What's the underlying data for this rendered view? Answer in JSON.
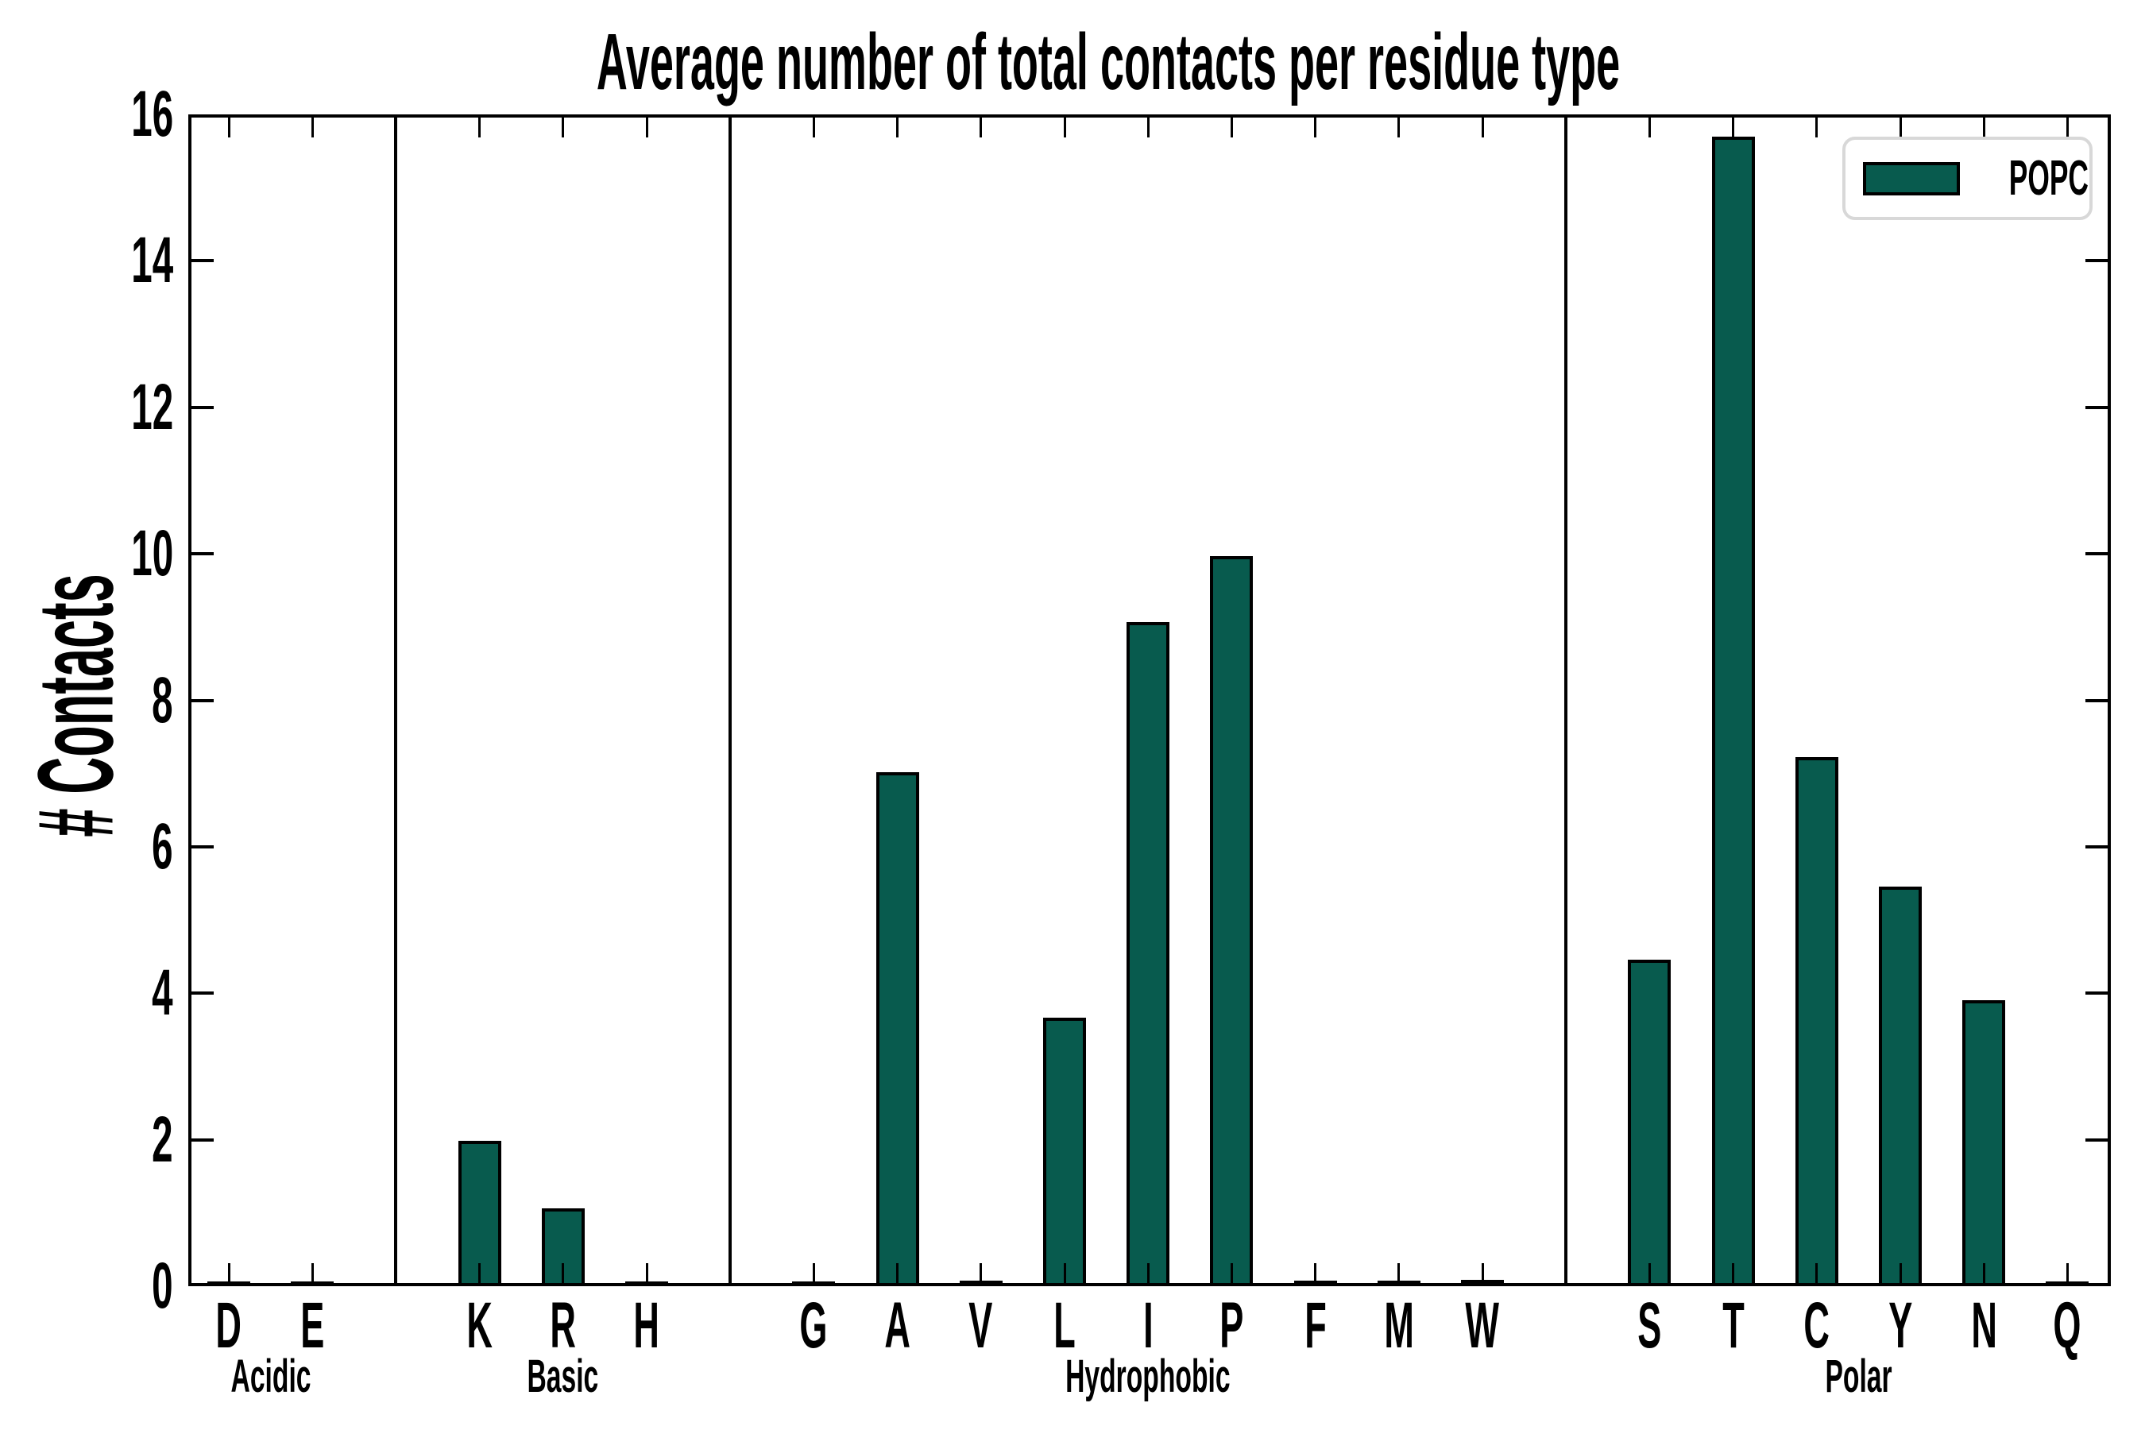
{
  "chart_data": {
    "type": "bar",
    "title": "Average number of total contacts per residue type",
    "ylabel": "# Contacts",
    "ylim": [
      0,
      16
    ],
    "yticks": [
      0,
      2,
      4,
      6,
      8,
      10,
      12,
      14,
      16
    ],
    "grid": false,
    "legend": {
      "label": "POPC",
      "position": "upper right"
    },
    "bar_color": "#085b4e",
    "bar_edge_color": "#000000",
    "group_separator_color": "#000000",
    "categories": [
      "D",
      "E",
      "K",
      "R",
      "H",
      "G",
      "A",
      "V",
      "L",
      "I",
      "P",
      "F",
      "M",
      "W",
      "S",
      "T",
      "C",
      "Y",
      "N",
      "Q"
    ],
    "values": [
      0.02,
      0.02,
      1.94,
      1.02,
      0.02,
      0.02,
      6.97,
      0.03,
      3.62,
      9.02,
      9.93,
      0.03,
      0.03,
      0.04,
      4.42,
      15.65,
      7.18,
      5.41,
      3.86,
      0.02
    ],
    "groups": [
      {
        "label": "Acidic",
        "residues": [
          "D",
          "E"
        ],
        "values": [
          0.02,
          0.02
        ]
      },
      {
        "label": "Basic",
        "residues": [
          "K",
          "R",
          "H"
        ],
        "values": [
          1.94,
          1.02,
          0.02
        ]
      },
      {
        "label": "Hydrophobic",
        "residues": [
          "G",
          "A",
          "V",
          "L",
          "I",
          "P",
          "F",
          "M",
          "W"
        ],
        "values": [
          0.02,
          6.97,
          0.03,
          3.62,
          9.02,
          9.93,
          0.03,
          0.03,
          0.04
        ]
      },
      {
        "label": "Polar",
        "residues": [
          "S",
          "T",
          "C",
          "Y",
          "N",
          "Q"
        ],
        "values": [
          4.42,
          15.65,
          7.18,
          5.41,
          3.86,
          0.02
        ]
      }
    ]
  }
}
